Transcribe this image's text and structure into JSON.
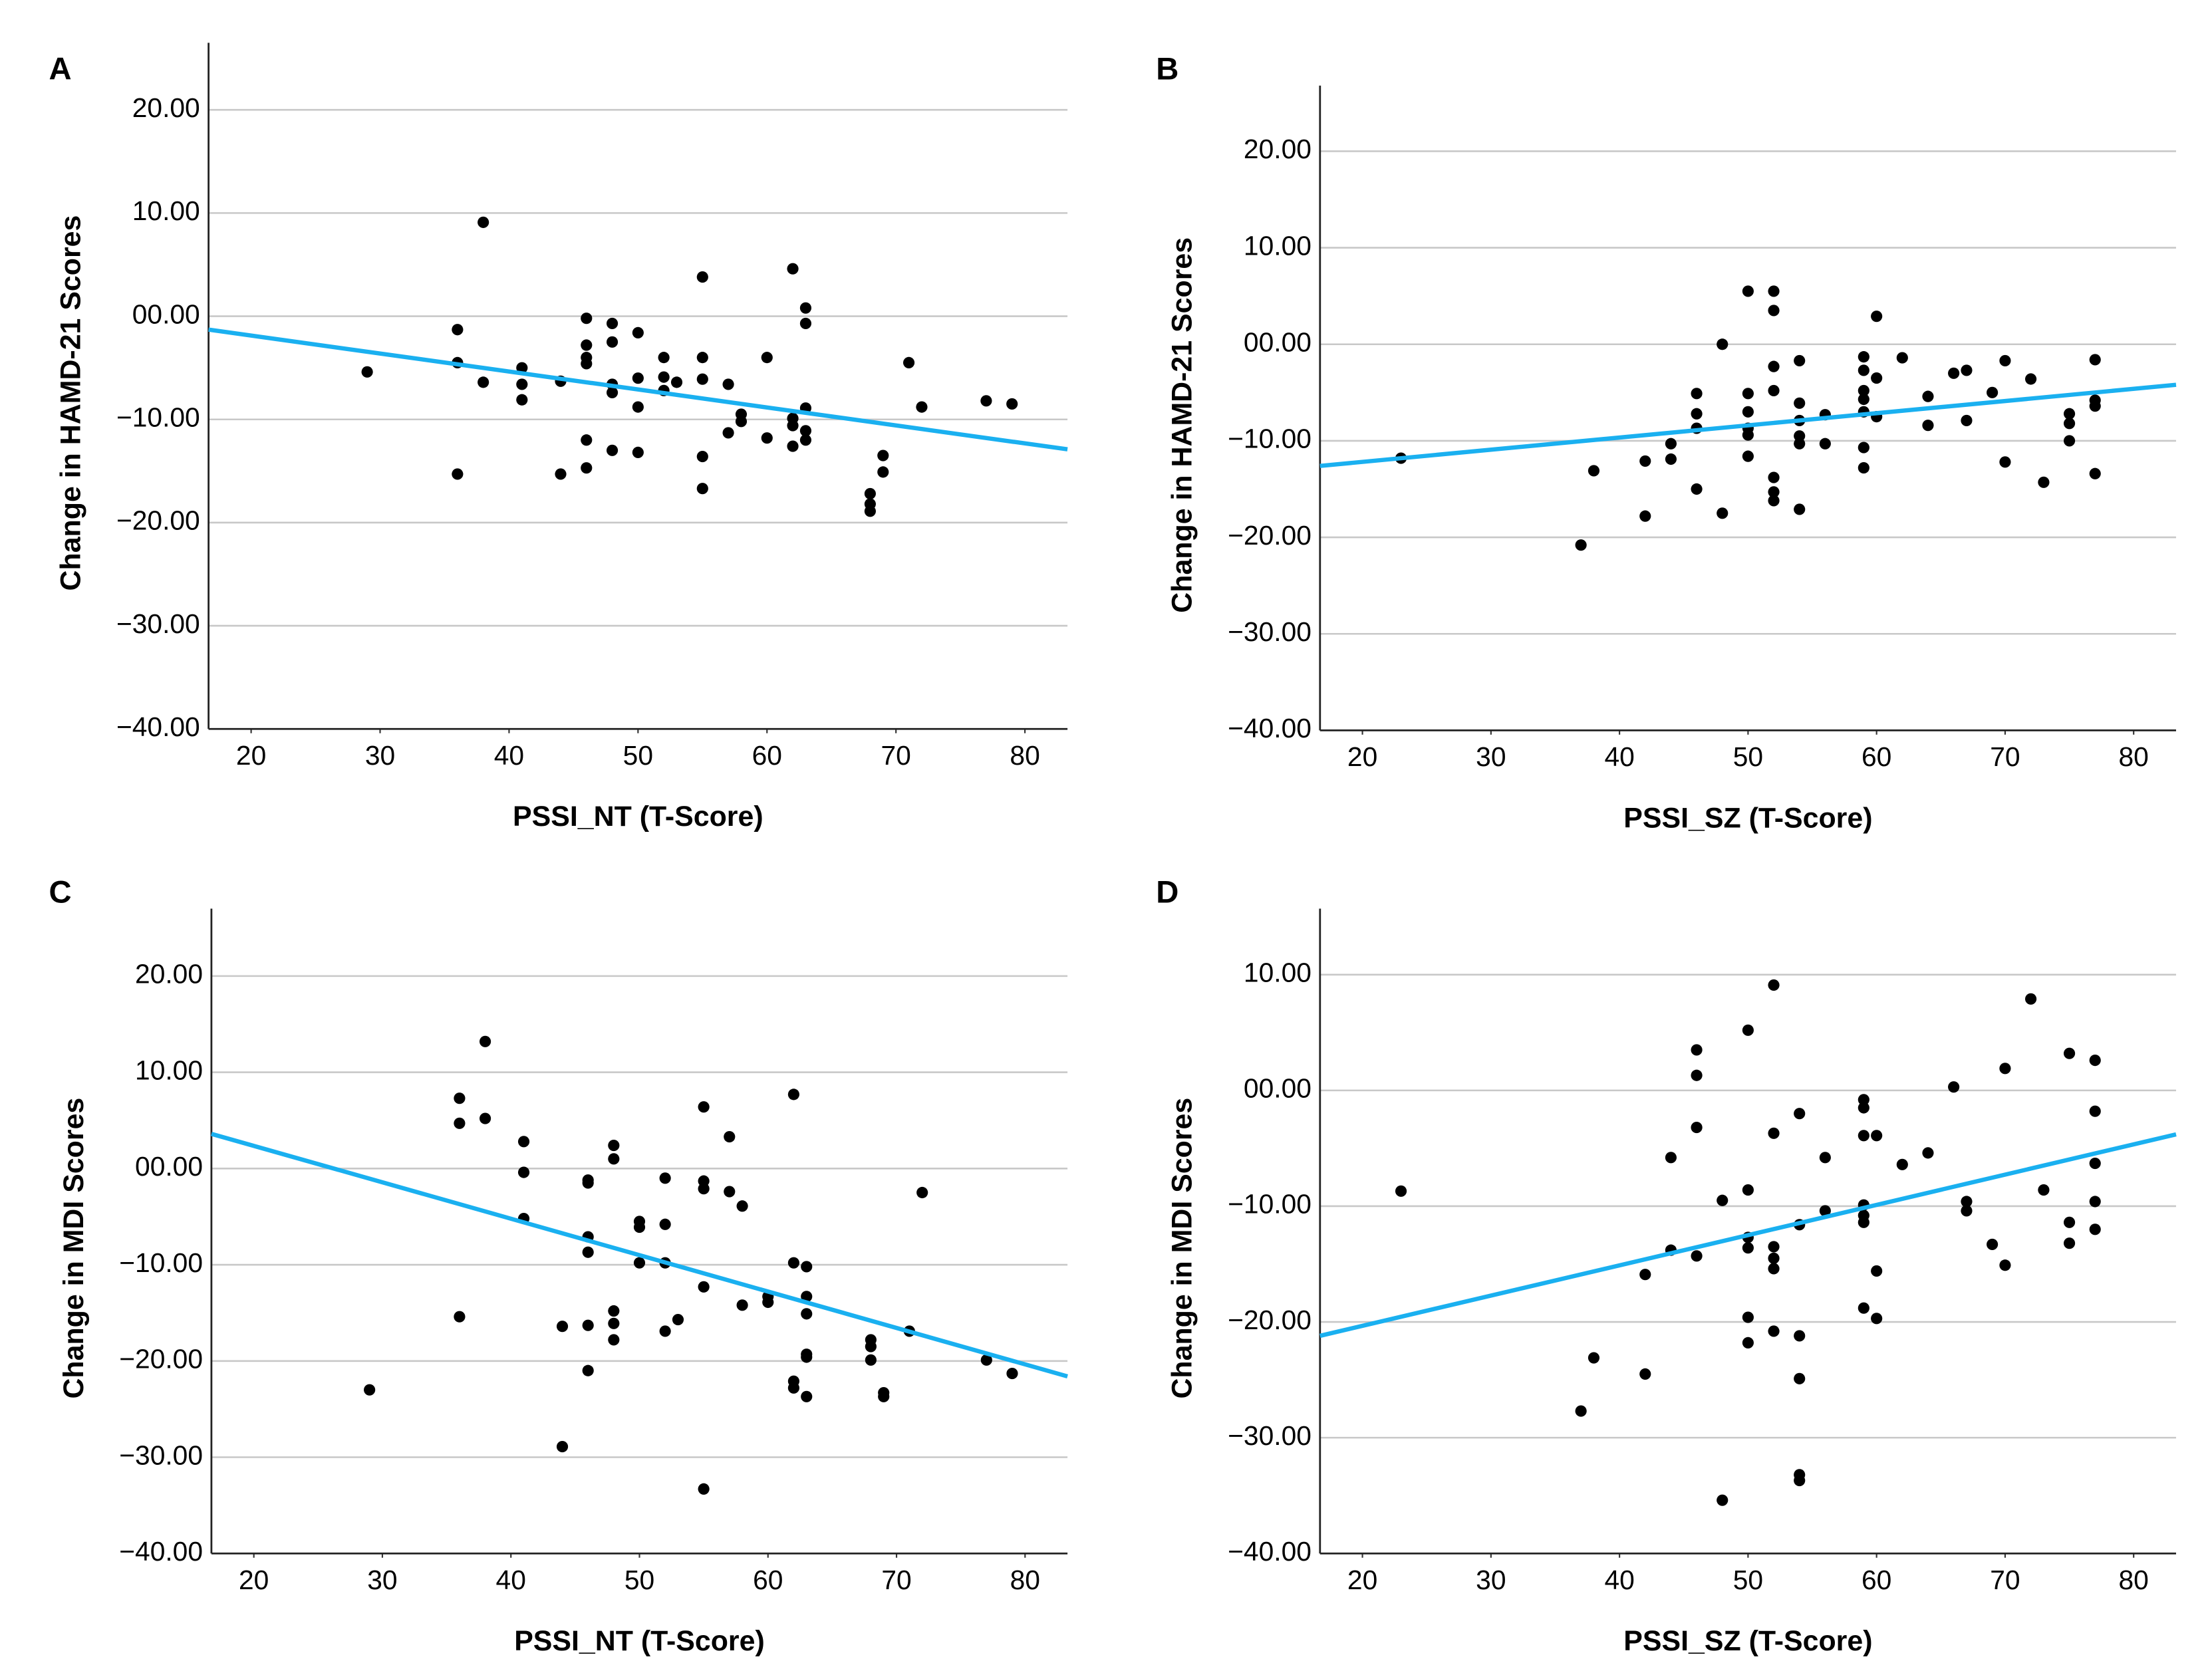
{
  "chart_data": [
    {
      "type": "scatter",
      "panel": "A",
      "xlabel": "PSSI_NT (T-Score)",
      "ylabel": "Change in HAMD-21 Scores",
      "color": "#000000",
      "grid": true,
      "xlim": [
        16.7,
        83.3
      ],
      "ylim": [
        -40,
        26.5
      ],
      "xticks": [
        20,
        30,
        40,
        50,
        60,
        70,
        80
      ],
      "yticks": [
        {
          "value": 20,
          "label": "20.00"
        },
        {
          "value": 10,
          "label": "10.00"
        },
        {
          "value": 0,
          "label": "00.00"
        },
        {
          "value": -10,
          "label": "−10.00"
        },
        {
          "value": -20,
          "label": "−20.00"
        },
        {
          "value": -30,
          "label": "−30.00"
        },
        {
          "value": -40,
          "label": "−40.00"
        }
      ],
      "x": [
        29,
        36,
        36,
        36,
        38,
        38,
        41,
        41,
        41,
        44,
        44,
        46,
        46,
        46,
        46,
        46,
        46,
        48,
        48,
        48,
        48,
        48,
        50,
        50,
        50,
        50,
        52,
        52,
        52,
        53,
        55,
        55,
        55,
        55,
        55,
        57,
        57,
        58,
        58,
        60,
        60,
        62,
        62,
        62,
        62,
        63,
        63,
        63,
        63,
        63,
        68,
        68,
        68,
        69,
        69,
        71,
        72,
        77,
        79
      ],
      "y": [
        -5.4,
        -1.3,
        -4.5,
        -15.3,
        9.1,
        -6.4,
        -5,
        -6.6,
        -8.1,
        -6.3,
        -15.3,
        -0.2,
        -2.8,
        -4,
        -4.6,
        -12,
        -14.7,
        -0.7,
        -2.5,
        -6.6,
        -7.4,
        -13,
        -1.6,
        -6,
        -8.8,
        -13.2,
        -4,
        -5.9,
        -7.2,
        -6.4,
        3.8,
        -4,
        -6.1,
        -13.6,
        -16.7,
        -6.6,
        -11.3,
        -9.5,
        -10.2,
        -4,
        -11.8,
        4.6,
        -9.9,
        -10.6,
        -12.6,
        0.8,
        -0.7,
        -8.9,
        -11.1,
        -12,
        -17.2,
        -18.2,
        -18.9,
        -13.5,
        -15.1,
        -4.5,
        -8.8,
        -8.2,
        -8.5
      ],
      "fit": {
        "color": "#1ab0f0",
        "x": [
          16.7,
          83.3
        ],
        "y": [
          -1.3,
          -12.9
        ]
      }
    },
    {
      "type": "scatter",
      "panel": "B",
      "xlabel": "PSSI_SZ (T-Score)",
      "ylabel": "Change in HAMD-21 Scores",
      "color": "#000000",
      "grid": true,
      "xlim": [
        16.7,
        83.3
      ],
      "ylim": [
        -40,
        26.8
      ],
      "xticks": [
        20,
        30,
        40,
        50,
        60,
        70,
        80
      ],
      "yticks": [
        {
          "value": 20,
          "label": "20.00"
        },
        {
          "value": 10,
          "label": "10.00"
        },
        {
          "value": 0,
          "label": "00.00"
        },
        {
          "value": -10,
          "label": "−10.00"
        },
        {
          "value": -20,
          "label": "−20.00"
        },
        {
          "value": -30,
          "label": "−30.00"
        },
        {
          "value": -40,
          "label": "−40.00"
        }
      ],
      "x": [
        23,
        37,
        38,
        42,
        42,
        44,
        44,
        46,
        46,
        46,
        46,
        48,
        48,
        50,
        50,
        50,
        50,
        50,
        50,
        52,
        52,
        52,
        52,
        52,
        52,
        52,
        54,
        54,
        54,
        54,
        54,
        54,
        56,
        56,
        59,
        59,
        59,
        59,
        59,
        59,
        59,
        60,
        60,
        60,
        62,
        64,
        64,
        66,
        67,
        67,
        69,
        70,
        70,
        72,
        73,
        75,
        75,
        75,
        77,
        77,
        77,
        77
      ],
      "y": [
        -11.8,
        -20.8,
        -13.1,
        -12.1,
        -17.8,
        -10.3,
        -11.9,
        -5.1,
        -7.2,
        -8.7,
        -15,
        0,
        -17.5,
        5.5,
        -5.1,
        -7,
        -8.7,
        -9.4,
        -11.6,
        5.5,
        3.5,
        -2.3,
        -4.8,
        -13.8,
        -15.3,
        -16.2,
        -1.7,
        -6.1,
        -7.9,
        -9.5,
        -10.3,
        -17.1,
        -7.3,
        -10.3,
        -1.3,
        -2.7,
        -4.8,
        -5.7,
        -7,
        -10.7,
        -12.8,
        2.9,
        -3.5,
        -7.5,
        -1.4,
        -5.4,
        -8.4,
        -3,
        -2.7,
        -7.9,
        -5,
        -1.7,
        -12.2,
        -3.6,
        -14.3,
        -7.2,
        -8.2,
        -10,
        -1.6,
        -5.8,
        -6.4,
        -13.4
      ],
      "fit": {
        "color": "#1ab0f0",
        "x": [
          16.7,
          83.3
        ],
        "y": [
          -12.6,
          -4.2
        ]
      }
    },
    {
      "type": "scatter",
      "panel": "C",
      "xlabel": "PSSI_NT (T-Score)",
      "ylabel": "Change in MDI Scores",
      "color": "#000000",
      "grid": true,
      "xlim": [
        16.7,
        83.3
      ],
      "ylim": [
        -40,
        27
      ],
      "xticks": [
        20,
        30,
        40,
        50,
        60,
        70,
        80
      ],
      "yticks": [
        {
          "value": 20,
          "label": "20.00"
        },
        {
          "value": 10,
          "label": "10.00"
        },
        {
          "value": 0,
          "label": "00.00"
        },
        {
          "value": -10,
          "label": "−10.00"
        },
        {
          "value": -20,
          "label": "−20.00"
        },
        {
          "value": -30,
          "label": "−30.00"
        },
        {
          "value": -40,
          "label": "−40.00"
        }
      ],
      "x": [
        29,
        36,
        36,
        36,
        38,
        38,
        41,
        41,
        41,
        44,
        44,
        46,
        46,
        46,
        46,
        46,
        46,
        48,
        48,
        48,
        48,
        48,
        50,
        50,
        50,
        52,
        52,
        52,
        52,
        53,
        55,
        55,
        55,
        55,
        55,
        57,
        57,
        58,
        58,
        60,
        60,
        62,
        62,
        62,
        62,
        63,
        63,
        63,
        63,
        63,
        63,
        68,
        68,
        68,
        69,
        69,
        71,
        72,
        77,
        79
      ],
      "y": [
        -23,
        7.3,
        4.7,
        -15.4,
        13.2,
        5.2,
        2.8,
        -0.4,
        -5.2,
        -16.4,
        -28.9,
        -1.2,
        -1.5,
        -7.1,
        -8.7,
        -16.3,
        -21,
        2.4,
        1,
        -14.8,
        -16.1,
        -17.8,
        -5.5,
        -6.1,
        -9.8,
        -1,
        -5.8,
        -9.8,
        -16.9,
        -15.7,
        6.4,
        -1.3,
        -2.1,
        -12.3,
        -33.3,
        3.3,
        -2.4,
        -3.9,
        -14.2,
        -13.3,
        -13.9,
        7.7,
        -9.8,
        -22.1,
        -22.8,
        -10.2,
        -13.3,
        -15.1,
        -19.3,
        -19.6,
        -23.7,
        -17.8,
        -18.5,
        -19.9,
        -23.3,
        -23.7,
        -16.9,
        -2.5,
        -19.9,
        -21.3
      ],
      "fit": {
        "color": "#1ab0f0",
        "x": [
          16.7,
          83.3
        ],
        "y": [
          3.6,
          -21.6
        ]
      }
    },
    {
      "type": "scatter",
      "panel": "D",
      "xlabel": "PSSI_SZ (T-Score)",
      "ylabel": "Change in MDI Scores",
      "color": "#000000",
      "grid": true,
      "xlim": [
        16.7,
        83.3
      ],
      "ylim": [
        -40,
        15.7
      ],
      "xticks": [
        20,
        30,
        40,
        50,
        60,
        70,
        80
      ],
      "yticks": [
        {
          "value": 10,
          "label": "10.00"
        },
        {
          "value": 0,
          "label": "00.00"
        },
        {
          "value": -10,
          "label": "−10.00"
        },
        {
          "value": -20,
          "label": "−20.00"
        },
        {
          "value": -30,
          "label": "−30.00"
        },
        {
          "value": -40,
          "label": "−40.00"
        }
      ],
      "x": [
        23,
        37,
        38,
        42,
        42,
        44,
        44,
        46,
        46,
        46,
        46,
        48,
        48,
        50,
        50,
        50,
        50,
        50,
        50,
        52,
        52,
        52,
        52,
        52,
        52,
        54,
        54,
        54,
        54,
        54,
        54,
        56,
        56,
        59,
        59,
        59,
        59,
        59,
        59,
        59,
        60,
        60,
        60,
        62,
        64,
        66,
        67,
        67,
        69,
        70,
        70,
        72,
        73,
        75,
        75,
        75,
        77,
        77,
        77,
        77,
        77
      ],
      "y": [
        -8.7,
        -27.7,
        -23.1,
        -15.9,
        -24.5,
        -5.8,
        -13.8,
        3.5,
        1.3,
        -3.2,
        -14.3,
        -9.5,
        -35.4,
        5.2,
        -8.6,
        -12.7,
        -13.6,
        -19.6,
        -21.8,
        9.1,
        -3.7,
        -13.5,
        -14.5,
        -15.4,
        -20.8,
        -2,
        -11.6,
        -21.2,
        -24.9,
        -33.2,
        -33.7,
        -5.8,
        -10.4,
        -0.8,
        -1.5,
        -3.9,
        -9.9,
        -10.8,
        -11.4,
        -18.8,
        -3.9,
        -15.6,
        -19.7,
        -6.4,
        -5.4,
        0.3,
        -9.6,
        -10.4,
        -13.3,
        1.9,
        -15.1,
        7.9,
        -8.6,
        3.2,
        -11.4,
        -13.2,
        2.6,
        -1.8,
        -6.3,
        -9.6,
        -12
      ],
      "fit": {
        "color": "#1ab0f0",
        "x": [
          16.7,
          83.3
        ],
        "y": [
          -21.2,
          -3.8
        ]
      }
    }
  ]
}
